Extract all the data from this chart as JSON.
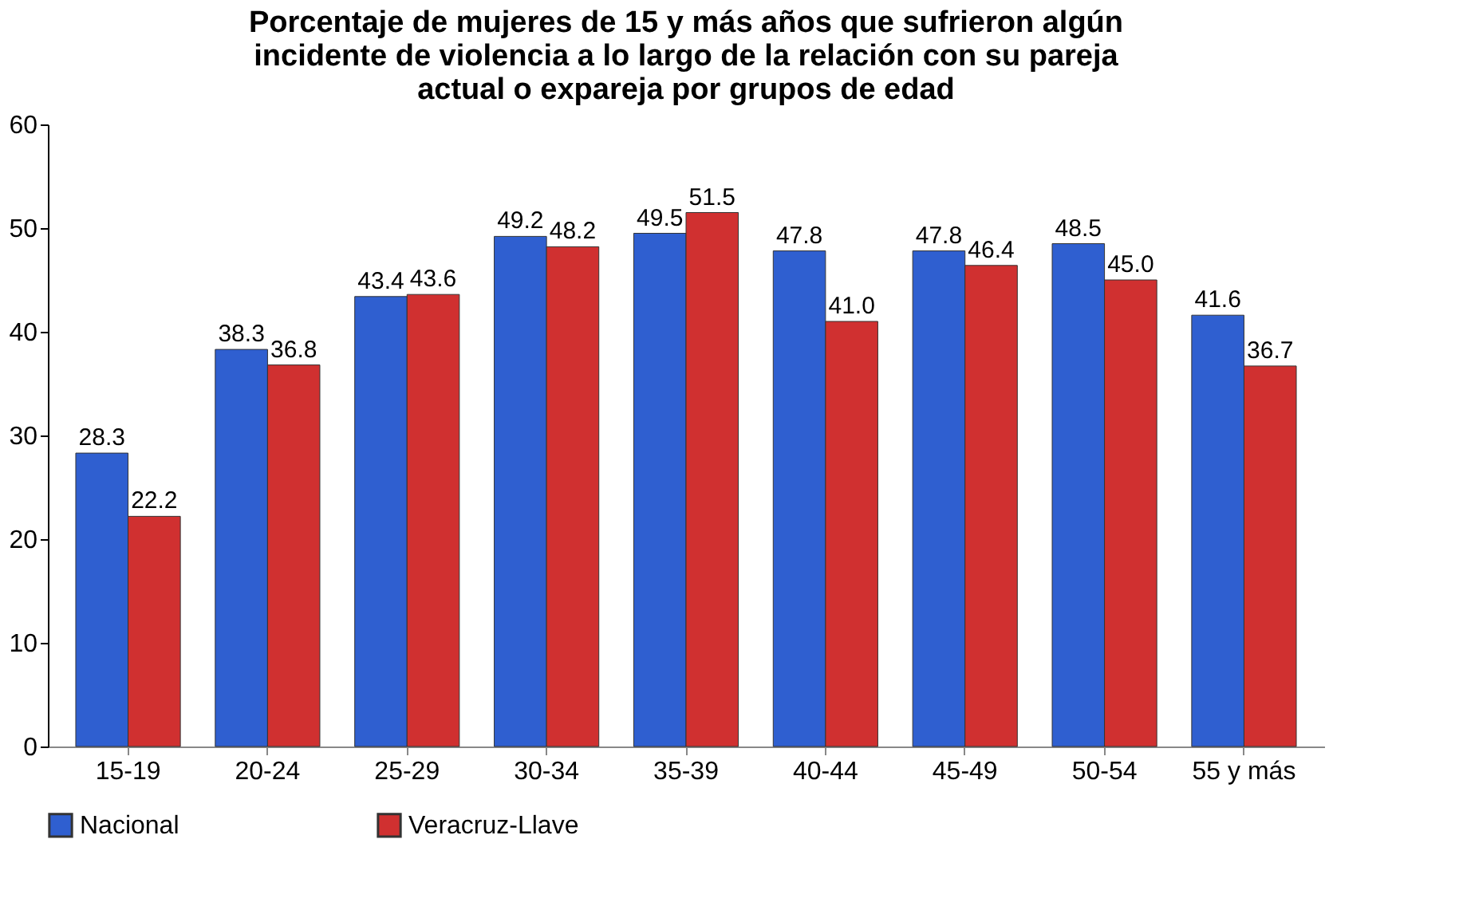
{
  "chart_data": {
    "type": "bar",
    "title": "Porcentaje de mujeres de 15 y más años que sufrieron algún incidente de violencia a lo largo de la relación con su pareja actual o expareja por grupos de edad",
    "categories": [
      "15-19",
      "20-24",
      "25-29",
      "30-34",
      "35-39",
      "40-44",
      "45-49",
      "50-54",
      "55 y más"
    ],
    "series": [
      {
        "name": "Nacional",
        "color": "#2f5fd0",
        "values": [
          28.3,
          38.3,
          43.4,
          49.2,
          49.5,
          47.8,
          47.8,
          48.5,
          41.6
        ],
        "value_labels": [
          "28.3",
          "38.3",
          "43.4",
          "49.2",
          "49.5",
          "47.8",
          "47.8",
          "48.5",
          "41.6"
        ]
      },
      {
        "name": "Veracruz-Llave",
        "color": "#d03030",
        "values": [
          22.2,
          36.8,
          43.6,
          48.2,
          51.5,
          41.0,
          46.4,
          45.0,
          36.7
        ],
        "value_labels": [
          "22.2",
          "36.8",
          "43.6",
          "48.2",
          "51.5",
          "41.0",
          "46.4",
          "45.0",
          "36.7"
        ]
      }
    ],
    "ylim": [
      0,
      60
    ],
    "yticks": [
      0,
      10,
      20,
      30,
      40,
      50,
      60
    ],
    "grid": false,
    "legend": "bottom"
  }
}
